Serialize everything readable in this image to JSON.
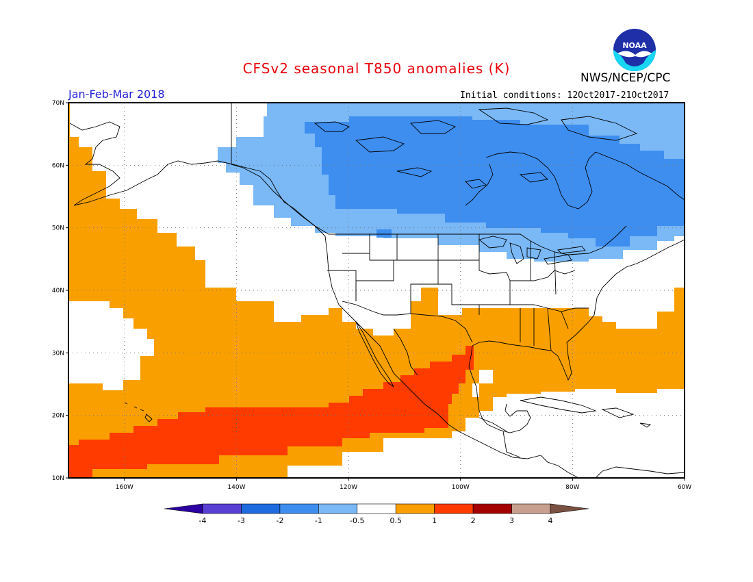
{
  "header": {
    "title": "CFSv2 seasonal T850 anomalies (K)",
    "agency": "NWS/NCEP/CPC",
    "period": "Jan-Feb-Mar 2018",
    "initial_conditions": "Initial conditions: 12Oct2017-21Oct2017",
    "logo_text": "NOAA"
  },
  "map": {
    "lon_range": [
      -170,
      -60
    ],
    "lat_range": [
      10,
      70
    ],
    "lon_ticks": [
      {
        "value": -160,
        "label": "160W"
      },
      {
        "value": -140,
        "label": "140W"
      },
      {
        "value": -120,
        "label": "120W"
      },
      {
        "value": -100,
        "label": "100W"
      },
      {
        "value": -80,
        "label": "80W"
      },
      {
        "value": -60,
        "label": "60W"
      }
    ],
    "lat_ticks": [
      {
        "value": 10,
        "label": "10N"
      },
      {
        "value": 20,
        "label": "20N"
      },
      {
        "value": 30,
        "label": "30N"
      },
      {
        "value": 40,
        "label": "40N"
      },
      {
        "value": 50,
        "label": "50N"
      },
      {
        "value": 60,
        "label": "60N"
      },
      {
        "value": 70,
        "label": "70N"
      }
    ],
    "gridlines": true
  },
  "colorbar": {
    "labels": [
      "-4",
      "-3",
      "-2",
      "-1",
      "-0.5",
      "0.5",
      "1",
      "2",
      "3",
      "4"
    ],
    "colors": [
      "#2a00a0",
      "#5a3fd4",
      "#1e6be0",
      "#3e8ef0",
      "#7ab8f6",
      "#ffffff",
      "#f9a000",
      "#ff3b00",
      "#a50000",
      "#c8a090",
      "#7a5040"
    ]
  },
  "colors": {
    "warm_05_1": "#f9a000",
    "warm_1_2": "#ff3b00",
    "cool_m05_m1": "#7ab8f6",
    "cool_m1_m2": "#3e8ef0"
  }
}
